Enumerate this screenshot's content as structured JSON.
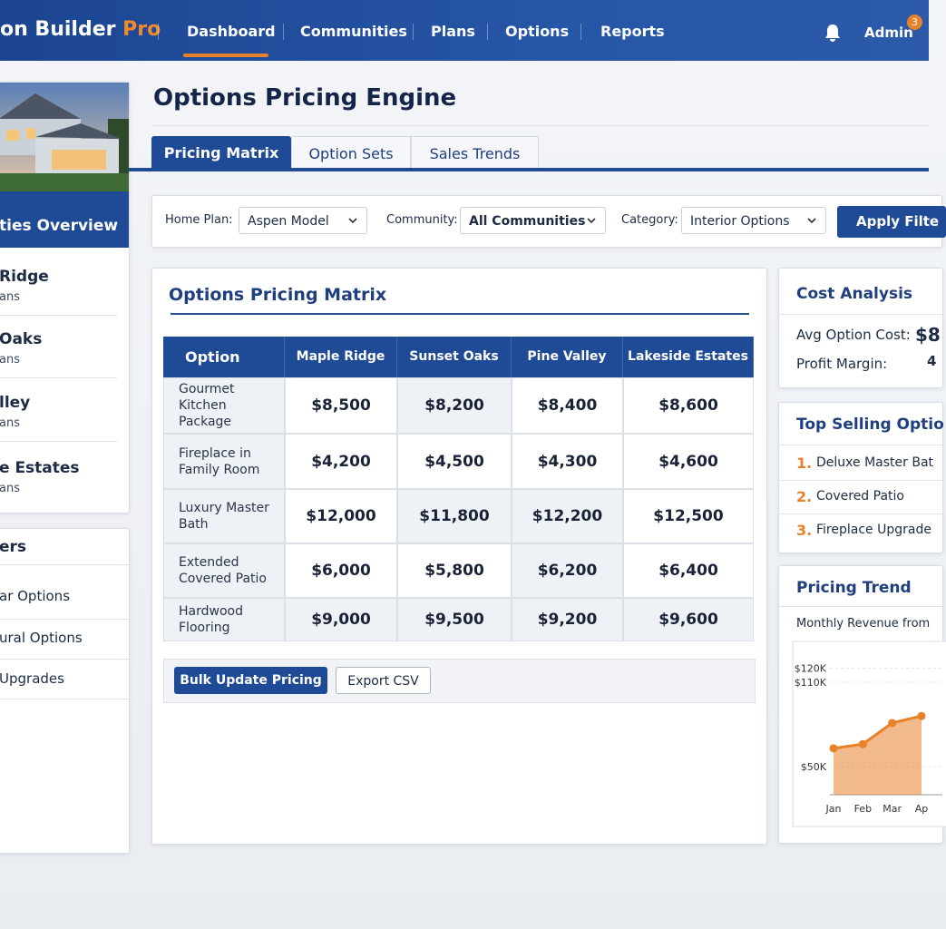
{
  "header": {
    "brand": "on Builder",
    "brand_accent": "Pro",
    "nav": [
      "Dashboard",
      "Communities",
      "Plans",
      "Options",
      "Reports"
    ],
    "user": "Admin",
    "badge": "3"
  },
  "sidebar": {
    "section_title": "ties Overview",
    "communities": [
      {
        "name": "Ridge",
        "sub": "ans"
      },
      {
        "name": "Oaks",
        "sub": "ans"
      },
      {
        "name": "lley",
        "sub": "ans"
      },
      {
        "name": "e Estates",
        "sub": "ans"
      }
    ],
    "filters_title": "ers",
    "filters": [
      "ar Options",
      "ural Options",
      "Upgrades"
    ]
  },
  "page": {
    "title": "Options Pricing Engine",
    "tabs": [
      "Pricing Matrix",
      "Option Sets",
      "Sales Trends"
    ]
  },
  "filters": {
    "items": [
      {
        "label": "Home Plan:",
        "value": "Aspen Model"
      },
      {
        "label": "Community:",
        "value": "All Communities"
      },
      {
        "label": "Category:",
        "value": "Interior Options"
      }
    ],
    "apply": "Apply Filte"
  },
  "matrix": {
    "title": "Options Pricing Matrix",
    "columns": [
      "Option",
      "Maple Ridge",
      "Sunset Oaks",
      "Pine Valley",
      "Lakeside Estates"
    ],
    "rows": [
      [
        "Gourmet Kitchen Package",
        "$8,500",
        "$8,200",
        "$8,400",
        "$8,600"
      ],
      [
        "Fireplace in Family Room",
        "$4,200",
        "$4,500",
        "$4,300",
        "$4,600"
      ],
      [
        "Luxury Master Bath",
        "$12,000",
        "$11,800",
        "$12,200",
        "$12,500"
      ],
      [
        "Extended Covered Patio",
        "$6,000",
        "$5,800",
        "$6,200",
        "$6,400"
      ],
      [
        "Hardwood Flooring",
        "$9,000",
        "$9,500",
        "$9,200",
        "$9,600"
      ]
    ],
    "actions": [
      "Bulk Update Pricing",
      "Export CSV"
    ]
  },
  "cost_analysis": {
    "title": "Cost Analysis",
    "rows": [
      {
        "label": "Avg Option Cost:",
        "value": "$8"
      },
      {
        "label": "Profit Margin:",
        "value": "4"
      }
    ]
  },
  "top_selling": {
    "title": "Top Selling Optio",
    "items": [
      {
        "rank": "1.",
        "name": "Deluxe Master Bat"
      },
      {
        "rank": "2.",
        "name": "Covered Patio"
      },
      {
        "rank": "3.",
        "name": "Fireplace Upgrade"
      }
    ]
  },
  "pricing_trend": {
    "title": "Pricing Trend",
    "subtitle": "Monthly Revenue from",
    "chart_data": {
      "type": "area",
      "categories": [
        "Jan",
        "Feb",
        "Mar",
        "Ap"
      ],
      "values": [
        63,
        66,
        81,
        86
      ],
      "color": "#e8822a",
      "ylim": [
        30,
        130
      ],
      "yticks": [
        {
          "value": 50,
          "label": "$50K"
        },
        {
          "value": 110,
          "label": "$110K"
        },
        {
          "value": 120,
          "label": "$120K"
        }
      ]
    }
  }
}
